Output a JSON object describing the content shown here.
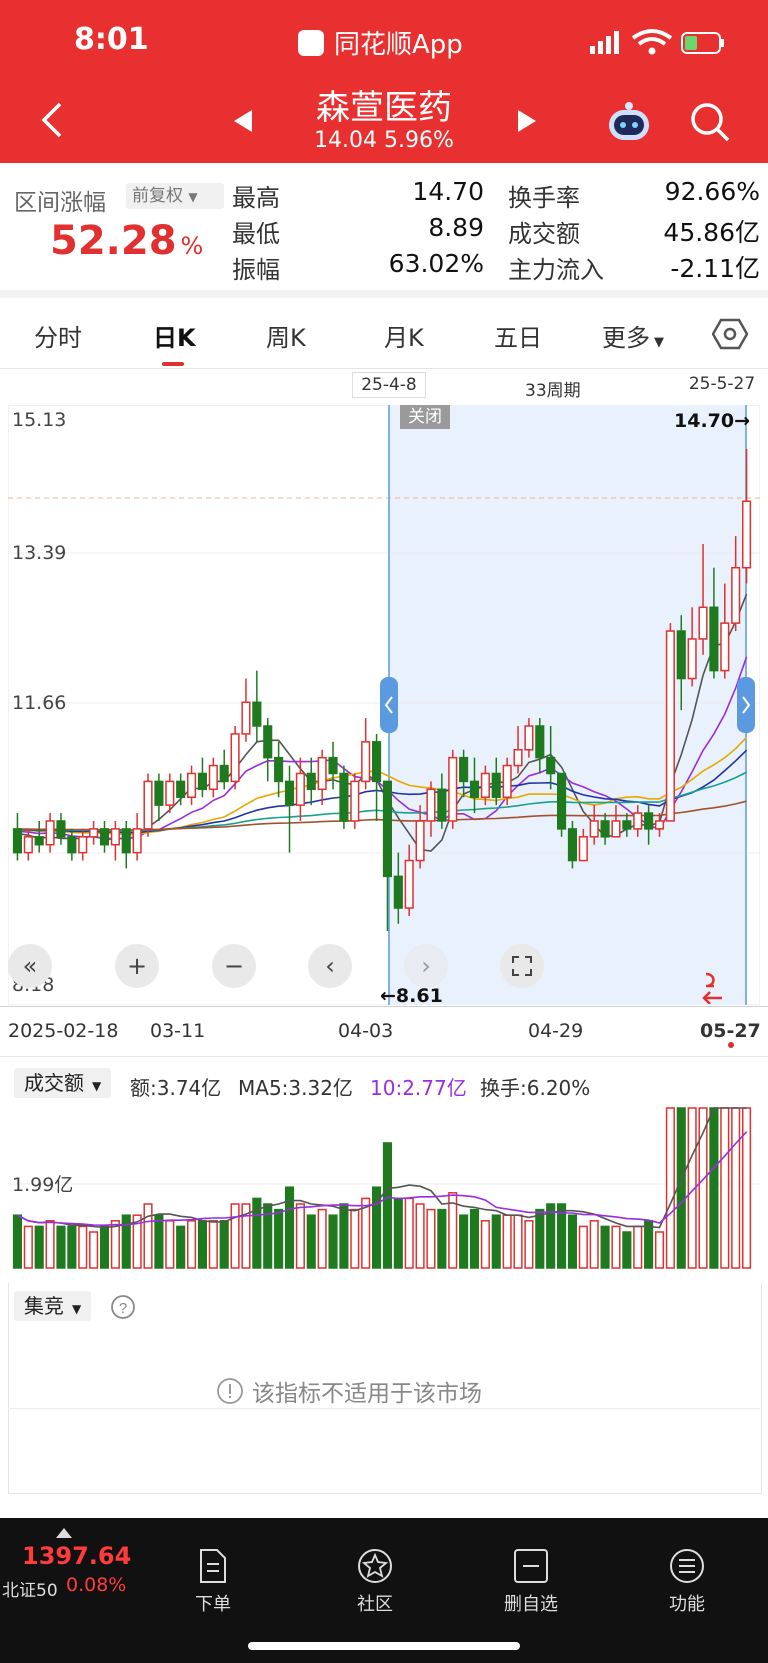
{
  "status": {
    "time": "8:01",
    "app_name": "同花顺App"
  },
  "header": {
    "title": "森萱医药",
    "price_change": "14.04  5.96%"
  },
  "range_summary": {
    "label": "区间涨幅",
    "adjust_label": "前复权",
    "value": "52.28",
    "unit": "%"
  },
  "stats": [
    {
      "label": "最高",
      "value": "14.70"
    },
    {
      "label": "最低",
      "value": "8.89"
    },
    {
      "label": "振幅",
      "value": "63.02%"
    },
    {
      "label": "换手率",
      "value": "92.66%"
    },
    {
      "label": "成交额",
      "value": "45.86亿"
    },
    {
      "label": "主力流入",
      "value": "-2.11亿"
    }
  ],
  "tabs": [
    "分时",
    "日K",
    "周K",
    "月K",
    "五日",
    "更多"
  ],
  "active_tab": "日K",
  "range": {
    "start": "25-4-8",
    "period": "33周期",
    "end": "25-5-27",
    "close_label": "关闭"
  },
  "price_axis": [
    "15.13",
    "13.39",
    "11.66",
    "8.18"
  ],
  "annotations": {
    "high": "14.70→",
    "low": "←8.61"
  },
  "date_axis": [
    "2025-02-18",
    "03-11",
    "04-03",
    "04-29",
    "05-27"
  ],
  "volume": {
    "selector": "成交额",
    "amount": "额:3.74亿",
    "ma5": "MA5:3.32亿",
    "ma10": "10:2.77亿",
    "turnover": "换手:6.20%",
    "axis_label": "1.99亿"
  },
  "indicator": {
    "selector": "集竞",
    "message": "该指标不适用于该市场"
  },
  "index": {
    "value": "1397.64",
    "name": "北证50",
    "change": "0.08%"
  },
  "bottom_nav": [
    "下单",
    "社区",
    "删自选",
    "功能"
  ],
  "colors": {
    "up": "#e03030",
    "down": "#1f7a1f",
    "header": "#e93030",
    "selection": "#e8f1fc"
  },
  "chart_data": {
    "type": "candlestick",
    "ylim": [
      8.18,
      15.13
    ],
    "candles": [
      [
        9.9,
        9.6,
        10.1,
        9.5
      ],
      [
        9.6,
        9.8,
        9.9,
        9.5
      ],
      [
        9.8,
        9.7,
        10.0,
        9.6
      ],
      [
        9.7,
        10.0,
        10.1,
        9.6
      ],
      [
        10.0,
        9.8,
        10.1,
        9.7
      ],
      [
        9.8,
        9.6,
        9.9,
        9.5
      ],
      [
        9.6,
        9.8,
        9.9,
        9.5
      ],
      [
        9.8,
        9.9,
        10.0,
        9.7
      ],
      [
        9.9,
        9.7,
        10.0,
        9.6
      ],
      [
        9.7,
        9.9,
        10.0,
        9.5
      ],
      [
        9.9,
        9.6,
        10.0,
        9.4
      ],
      [
        9.6,
        9.9,
        10.1,
        9.5
      ],
      [
        9.9,
        10.5,
        10.6,
        9.8
      ],
      [
        10.5,
        10.2,
        10.6,
        10.0
      ],
      [
        10.2,
        10.5,
        10.6,
        10.1
      ],
      [
        10.5,
        10.3,
        10.6,
        10.2
      ],
      [
        10.3,
        10.6,
        10.7,
        10.2
      ],
      [
        10.6,
        10.4,
        10.8,
        10.3
      ],
      [
        10.4,
        10.7,
        10.8,
        10.3
      ],
      [
        10.7,
        10.5,
        10.9,
        10.4
      ],
      [
        10.5,
        11.1,
        11.2,
        10.4
      ],
      [
        11.1,
        11.5,
        11.8,
        11.0
      ],
      [
        11.5,
        11.2,
        11.9,
        11.0
      ],
      [
        11.2,
        10.8,
        11.3,
        10.5
      ],
      [
        10.8,
        10.5,
        11.0,
        10.3
      ],
      [
        10.5,
        10.2,
        10.7,
        9.6
      ],
      [
        10.2,
        10.6,
        10.8,
        10.0
      ],
      [
        10.6,
        10.4,
        10.8,
        10.2
      ],
      [
        10.4,
        10.8,
        10.9,
        10.2
      ],
      [
        10.8,
        10.6,
        11.0,
        10.4
      ],
      [
        10.6,
        10.0,
        10.7,
        9.9
      ],
      [
        10.0,
        10.5,
        10.6,
        9.9
      ],
      [
        10.5,
        11.0,
        11.3,
        10.4
      ],
      [
        11.0,
        10.5,
        11.1,
        10.0
      ],
      [
        10.5,
        9.3,
        10.5,
        8.61
      ],
      [
        9.3,
        8.9,
        9.6,
        8.7
      ],
      [
        8.9,
        9.5,
        9.7,
        8.8
      ],
      [
        9.5,
        10.0,
        10.2,
        9.4
      ],
      [
        10.0,
        10.4,
        10.5,
        9.8
      ],
      [
        10.4,
        10.0,
        10.6,
        9.9
      ],
      [
        10.0,
        10.8,
        10.9,
        9.9
      ],
      [
        10.8,
        10.5,
        10.9,
        10.3
      ],
      [
        10.5,
        10.3,
        10.8,
        10.1
      ],
      [
        10.3,
        10.6,
        10.7,
        10.2
      ],
      [
        10.6,
        10.3,
        10.8,
        10.2
      ],
      [
        10.3,
        10.7,
        10.8,
        10.2
      ],
      [
        10.7,
        10.9,
        11.2,
        10.6
      ],
      [
        10.9,
        11.2,
        11.3,
        10.8
      ],
      [
        11.2,
        10.8,
        11.3,
        10.6
      ],
      [
        10.8,
        10.6,
        11.2,
        10.4
      ],
      [
        10.6,
        9.9,
        10.6,
        9.8
      ],
      [
        9.9,
        9.5,
        10.0,
        9.4
      ],
      [
        9.5,
        9.8,
        9.9,
        9.5
      ],
      [
        9.8,
        10.0,
        10.2,
        9.7
      ],
      [
        10.0,
        9.8,
        10.1,
        9.7
      ],
      [
        9.8,
        10.0,
        10.2,
        9.8
      ],
      [
        10.0,
        9.9,
        10.1,
        9.8
      ],
      [
        9.9,
        10.1,
        10.2,
        9.8
      ],
      [
        10.1,
        9.9,
        10.2,
        9.7
      ],
      [
        9.9,
        10.0,
        10.1,
        9.8
      ],
      [
        10.0,
        12.4,
        12.5,
        10.0
      ],
      [
        12.4,
        11.8,
        12.6,
        11.4
      ],
      [
        11.8,
        12.3,
        12.7,
        11.7
      ],
      [
        12.3,
        12.7,
        13.5,
        12.1
      ],
      [
        12.7,
        11.9,
        13.2,
        11.8
      ],
      [
        11.9,
        12.5,
        13.0,
        11.8
      ],
      [
        12.5,
        13.2,
        13.6,
        12.4
      ],
      [
        13.2,
        14.04,
        14.7,
        13.0
      ]
    ],
    "ma_colors": [
      "#555555",
      "#9b2de0",
      "#e8a800",
      "#2233aa",
      "#1aa090",
      "#a0522d"
    ]
  }
}
